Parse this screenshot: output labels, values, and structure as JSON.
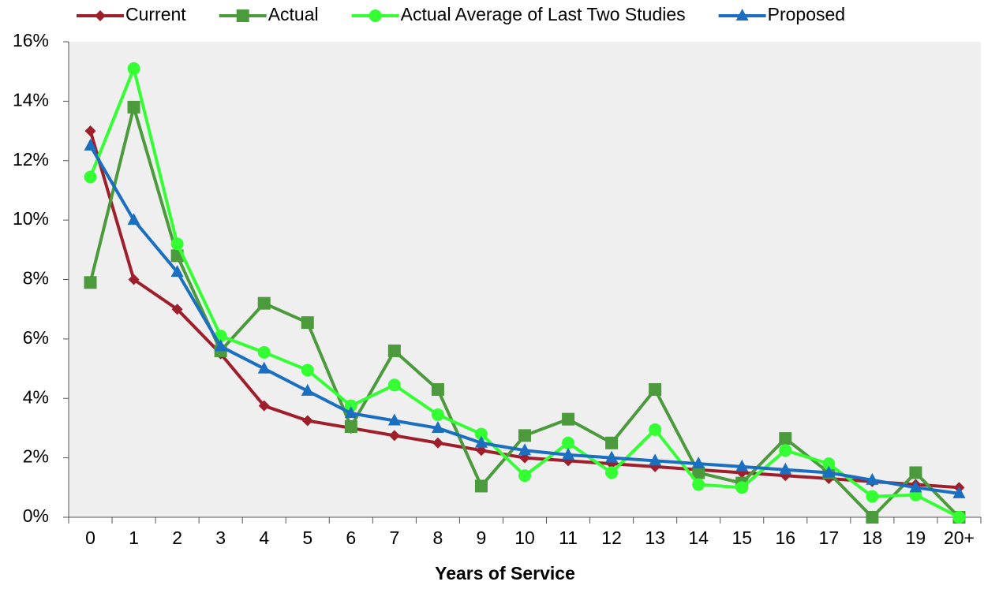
{
  "chart_data": {
    "type": "line",
    "x_label": "Years of Service",
    "categories": [
      "0",
      "1",
      "2",
      "3",
      "4",
      "5",
      "6",
      "7",
      "8",
      "9",
      "10",
      "11",
      "12",
      "13",
      "14",
      "15",
      "16",
      "17",
      "18",
      "19",
      "20+"
    ],
    "series": [
      {
        "name": "Current",
        "color": "#9e1f2b",
        "marker": "diamond",
        "values": [
          13,
          8,
          7,
          5.5,
          3.75,
          3.25,
          3.0,
          2.75,
          2.5,
          2.25,
          2.0,
          1.9,
          1.8,
          1.7,
          1.6,
          1.5,
          1.4,
          1.3,
          1.2,
          1.1,
          1.0
        ]
      },
      {
        "name": "Actual",
        "color": "#4b9a3b",
        "marker": "square",
        "values": [
          7.9,
          13.8,
          8.8,
          5.6,
          7.2,
          6.55,
          3.05,
          5.6,
          4.3,
          1.05,
          2.75,
          3.3,
          2.5,
          4.3,
          1.5,
          1.15,
          2.65,
          1.5,
          0.0,
          1.5,
          0.0
        ]
      },
      {
        "name": "Actual Average of Last Two Studies",
        "color": "#33ff33",
        "marker": "circle",
        "values": [
          11.45,
          15.1,
          9.2,
          6.1,
          5.55,
          4.95,
          3.75,
          4.45,
          3.45,
          2.8,
          1.4,
          2.5,
          1.5,
          2.95,
          1.1,
          1.0,
          2.25,
          1.8,
          0.7,
          0.75,
          0.0
        ]
      },
      {
        "name": "Proposed",
        "color": "#1a6fc0",
        "marker": "triangle",
        "values": [
          12.5,
          10.0,
          8.25,
          5.75,
          5.0,
          4.25,
          3.5,
          3.25,
          3.0,
          2.5,
          2.25,
          2.1,
          2.0,
          1.9,
          1.8,
          1.7,
          1.6,
          1.5,
          1.25,
          1.0,
          0.8
        ]
      }
    ],
    "ylim": [
      0,
      16
    ],
    "yticks": [
      {
        "value": 0,
        "label": "0%"
      },
      {
        "value": 2,
        "label": "2%"
      },
      {
        "value": 4,
        "label": "4%"
      },
      {
        "value": 6,
        "label": "6%"
      },
      {
        "value": 8,
        "label": "8%"
      },
      {
        "value": 10,
        "label": "10%"
      },
      {
        "value": 12,
        "label": "12%"
      },
      {
        "value": 14,
        "label": "14%"
      },
      {
        "value": 16,
        "label": "16%"
      }
    ],
    "grid": false,
    "legend": "top",
    "plot_background": "#efefef"
  }
}
